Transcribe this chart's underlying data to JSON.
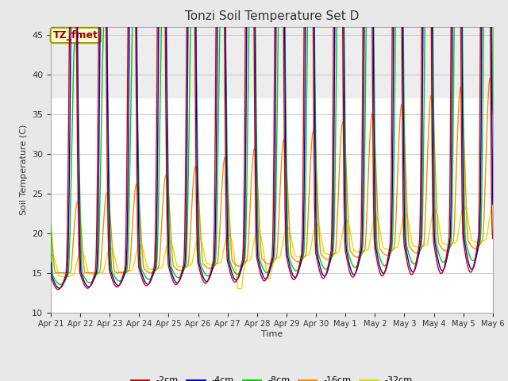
{
  "title": "Tonzi Soil Temperature Set D",
  "xlabel": "Time",
  "ylabel": "Soil Temperature (C)",
  "ylim": [
    10,
    46
  ],
  "yticks": [
    10,
    15,
    20,
    25,
    30,
    35,
    40,
    45
  ],
  "plot_bg_color": "#ffffff",
  "fig_bg_color": "#e8e8e8",
  "annotation_text": "TZ_fmet",
  "annotation_bg": "#ffffcc",
  "annotation_edge": "#999900",
  "annotation_color": "#990000",
  "legend_labels": [
    "-2cm",
    "-4cm",
    "-8cm",
    "-16cm",
    "-32cm"
  ],
  "legend_colors": [
    "#cc0000",
    "#0000cc",
    "#00cc00",
    "#ff8800",
    "#dddd00"
  ],
  "xtick_labels": [
    "Apr 21",
    "Apr 22",
    "Apr 23",
    "Apr 24",
    "Apr 25",
    "Apr 26",
    "Apr 27",
    "Apr 28",
    "Apr 29",
    "Apr 30",
    "May 1",
    "May 2",
    "May 3",
    "May 4",
    "May 5",
    "May 6"
  ],
  "n_days": 15,
  "pts_per_day": 48
}
